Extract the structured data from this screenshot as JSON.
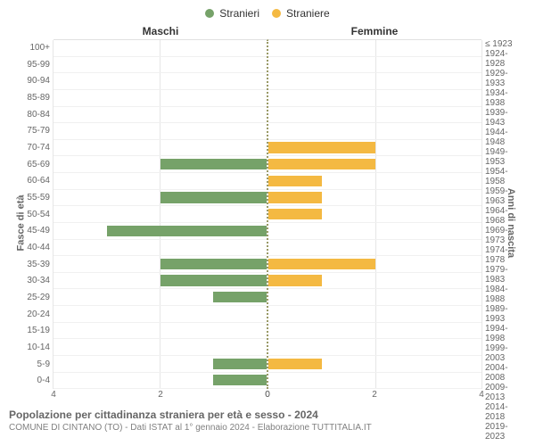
{
  "chart": {
    "type": "population-pyramid",
    "background_color": "#ffffff",
    "text_color": "#666666",
    "grid_color": "#e6e6e6",
    "band_border_color": "#f0f0f0",
    "center_line_color": "#999966",
    "legend": {
      "stranieri": {
        "label": "Stranieri",
        "color": "#76a269"
      },
      "straniere": {
        "label": "Straniere",
        "color": "#f4b942"
      }
    },
    "header": {
      "left": "Maschi",
      "right": "Femmine"
    },
    "y_axis_left_title": "Fasce di età",
    "y_axis_right_title": "Anni di nascita",
    "x_axis": {
      "max": 4,
      "ticks": [
        0,
        2,
        4
      ]
    },
    "age_labels": [
      "100+",
      "95-99",
      "90-94",
      "85-89",
      "80-84",
      "75-79",
      "70-74",
      "65-69",
      "60-64",
      "55-59",
      "50-54",
      "45-49",
      "40-44",
      "35-39",
      "30-34",
      "25-29",
      "20-24",
      "15-19",
      "10-14",
      "5-9",
      "0-4"
    ],
    "birth_labels": [
      "≤ 1923",
      "1924-1928",
      "1929-1933",
      "1934-1938",
      "1939-1943",
      "1944-1948",
      "1949-1953",
      "1954-1958",
      "1959-1963",
      "1964-1968",
      "1969-1973",
      "1974-1978",
      "1979-1983",
      "1984-1988",
      "1989-1993",
      "1994-1998",
      "1999-2003",
      "2004-2008",
      "2009-2013",
      "2014-2018",
      "2019-2023"
    ],
    "bands": [
      {
        "male": 0,
        "female": 0
      },
      {
        "male": 0,
        "female": 0
      },
      {
        "male": 0,
        "female": 0
      },
      {
        "male": 0,
        "female": 0
      },
      {
        "male": 0,
        "female": 0
      },
      {
        "male": 0,
        "female": 0
      },
      {
        "male": 0,
        "female": 2
      },
      {
        "male": 2,
        "female": 2
      },
      {
        "male": 0,
        "female": 1
      },
      {
        "male": 2,
        "female": 1
      },
      {
        "male": 0,
        "female": 1
      },
      {
        "male": 3,
        "female": 0
      },
      {
        "male": 0,
        "female": 0
      },
      {
        "male": 2,
        "female": 2
      },
      {
        "male": 2,
        "female": 1
      },
      {
        "male": 1,
        "female": 0
      },
      {
        "male": 0,
        "female": 0
      },
      {
        "male": 0,
        "female": 0
      },
      {
        "male": 0,
        "female": 0
      },
      {
        "male": 1,
        "female": 1
      },
      {
        "male": 1,
        "female": 0
      }
    ]
  },
  "footer": {
    "title": "Popolazione per cittadinanza straniera per età e sesso - 2024",
    "subtitle": "COMUNE DI CINTANO (TO) - Dati ISTAT al 1° gennaio 2024 - Elaborazione TUTTITALIA.IT"
  }
}
